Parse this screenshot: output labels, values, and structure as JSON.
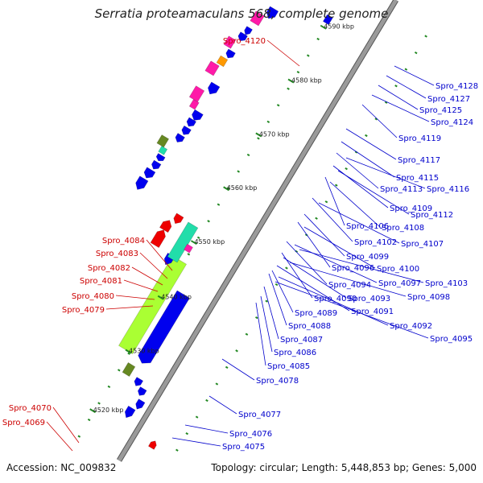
{
  "title": "Serratia proteamaculans 568, complete genome",
  "accession": "Accession: NC_009832",
  "summary": "Topology: circular; Length: 5,448,853 bp; Genes: 5,000",
  "colors": {
    "label_blue": "#0000cc",
    "label_red": "#cc0000",
    "gene_blue": "#0000ee",
    "gene_magenta": "#ff1aa8",
    "gene_red": "#ee0000",
    "gene_green": "#aaff33",
    "gene_teal": "#22ddaa",
    "gene_orange": "#ff9900",
    "gene_olive": "#668822",
    "backbone": "#9a9a9a",
    "tick_green": "#228822"
  },
  "ticks": [
    "4520 kbp",
    "4530 kbp",
    "4540 kbp",
    "4550 kbp",
    "4560 kbp",
    "4570 kbp",
    "4580 kbp",
    "4590 kbp"
  ],
  "labels_blue": [
    "Spro_4128",
    "Spro_4127",
    "Spro_4125",
    "Spro_4124",
    "Spro_4119",
    "Spro_4117",
    "Spro_4115",
    "Spro_4113",
    "Spro_4116",
    "Spro_4109",
    "Spro_4112",
    "Spro_4106",
    "Spro_4108",
    "Spro_4102",
    "Spro_4107",
    "Spro_4099",
    "Spro_4096",
    "Spro_4100",
    "Spro_4094",
    "Spro_4097",
    "Spro_4103",
    "Spro_4090",
    "Spro_4093",
    "Spro_4098",
    "Spro_4091",
    "Spro_4089",
    "Spro_4088",
    "Spro_4092",
    "Spro_4087",
    "Spro_4095",
    "Spro_4086",
    "Spro_4085",
    "Spro_4078",
    "Spro_4077",
    "Spro_4076",
    "Spro_4075"
  ],
  "labels_red": [
    "Spro_4120",
    "Spro_4084",
    "Spro_4083",
    "Spro_4082",
    "Spro_4081",
    "Spro_4080",
    "Spro_4079",
    "Spro_4070",
    "Spro_4069"
  ]
}
